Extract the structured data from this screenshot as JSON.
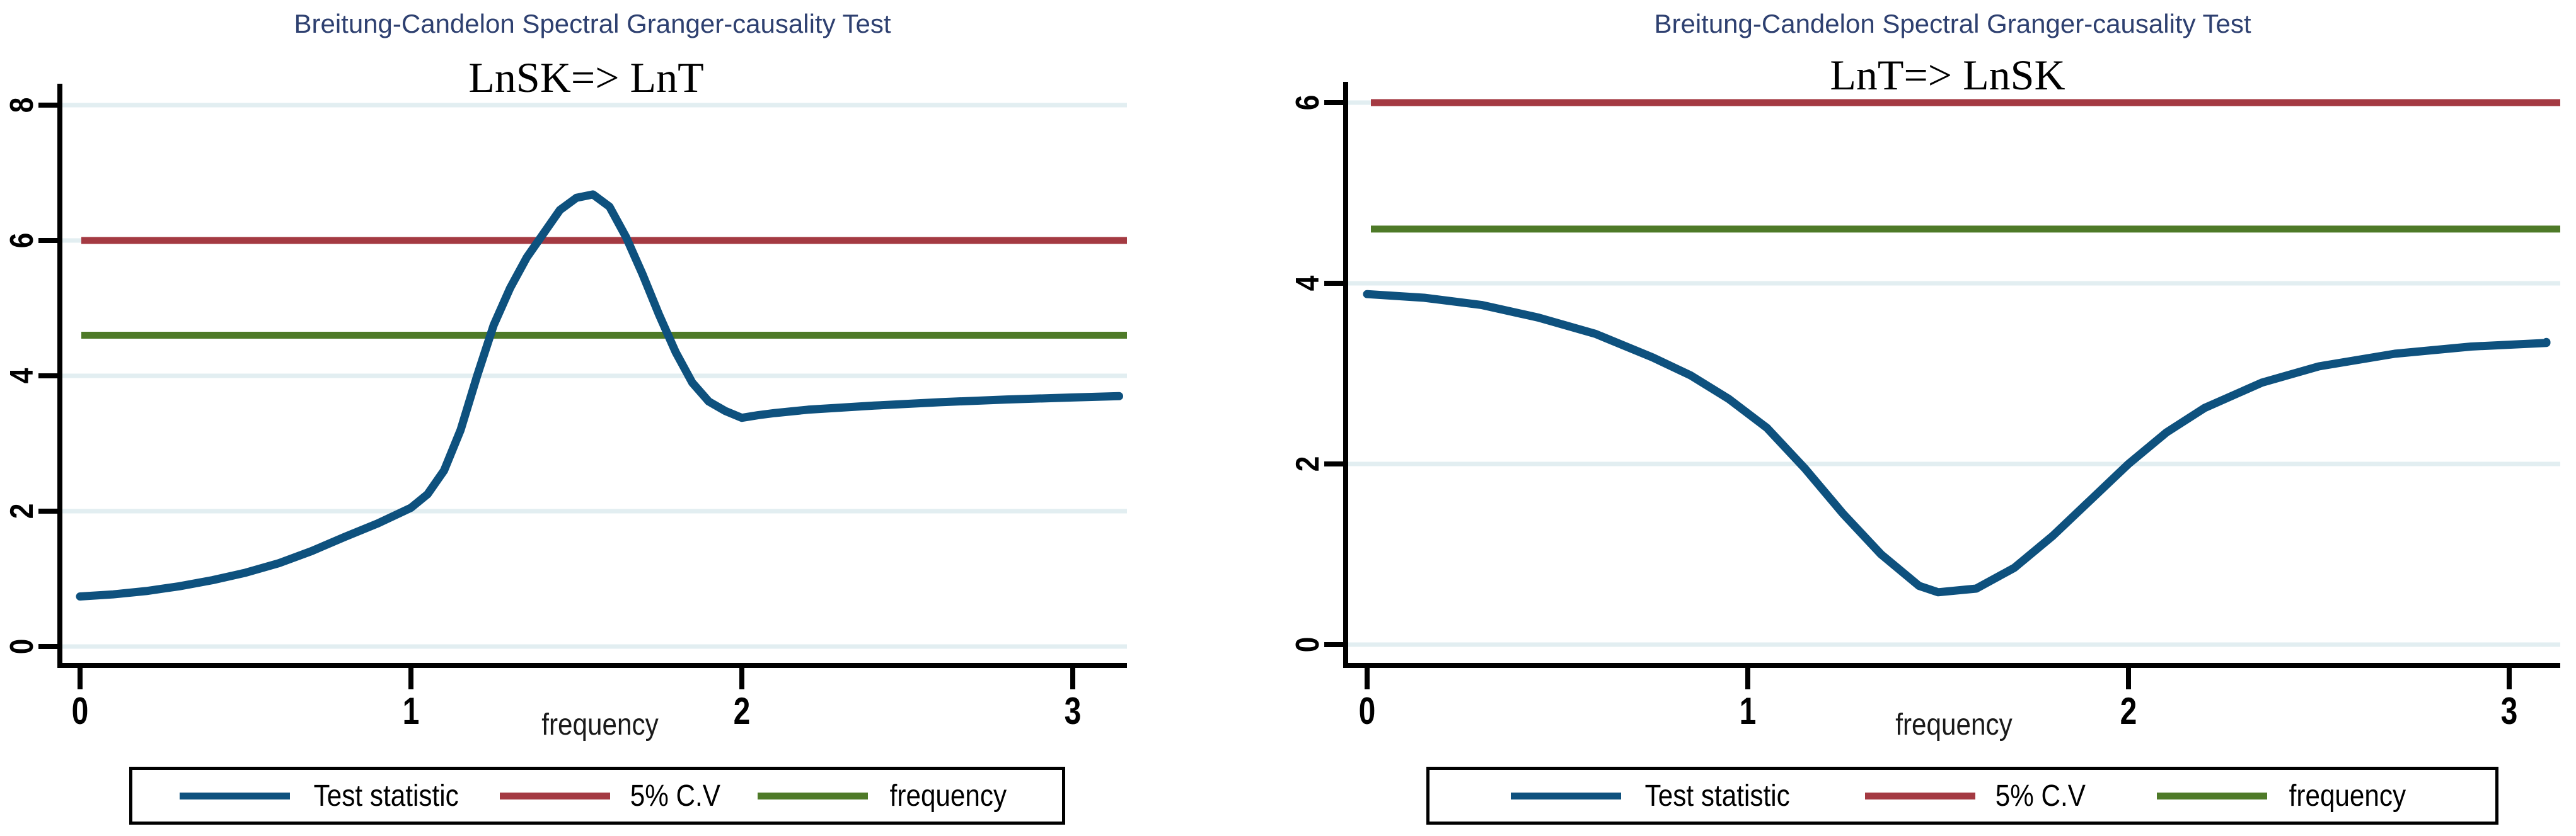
{
  "figure": {
    "background": "#ffffff",
    "title_color": "#2e4070",
    "grid_color": "#e2eef1",
    "axis_color": "#000000"
  },
  "chart_data": [
    {
      "type": "line",
      "title": "Breitung-Candelon Spectral Granger-causality Test",
      "subtitle": "LnSK=> LnT",
      "xlabel": "frequency",
      "ylabel": "",
      "xlim": [
        0,
        3.14
      ],
      "ylim": [
        0,
        8
      ],
      "xticks": [
        0,
        1,
        2,
        3
      ],
      "yticks": [
        0,
        2,
        4,
        6,
        8
      ],
      "grid": "horizontal-only",
      "legend_position": "bottom",
      "series": [
        {
          "name": "Test statistic",
          "kind": "curve",
          "color": "#0e517e",
          "points": [
            [
              0.0,
              0.74
            ],
            [
              0.1,
              0.77
            ],
            [
              0.2,
              0.82
            ],
            [
              0.3,
              0.89
            ],
            [
              0.4,
              0.98
            ],
            [
              0.5,
              1.09
            ],
            [
              0.6,
              1.23
            ],
            [
              0.7,
              1.41
            ],
            [
              0.8,
              1.62
            ],
            [
              0.9,
              1.82
            ],
            [
              1.0,
              2.05
            ],
            [
              1.05,
              2.25
            ],
            [
              1.1,
              2.6
            ],
            [
              1.15,
              3.2
            ],
            [
              1.2,
              4.0
            ],
            [
              1.25,
              4.75
            ],
            [
              1.3,
              5.3
            ],
            [
              1.35,
              5.75
            ],
            [
              1.4,
              6.1
            ],
            [
              1.45,
              6.45
            ],
            [
              1.5,
              6.63
            ],
            [
              1.55,
              6.68
            ],
            [
              1.6,
              6.5
            ],
            [
              1.65,
              6.05
            ],
            [
              1.7,
              5.5
            ],
            [
              1.75,
              4.9
            ],
            [
              1.8,
              4.35
            ],
            [
              1.85,
              3.9
            ],
            [
              1.9,
              3.62
            ],
            [
              1.95,
              3.48
            ],
            [
              2.0,
              3.38
            ],
            [
              2.05,
              3.42
            ],
            [
              2.1,
              3.45
            ],
            [
              2.2,
              3.5
            ],
            [
              2.4,
              3.56
            ],
            [
              2.6,
              3.61
            ],
            [
              2.8,
              3.65
            ],
            [
              3.0,
              3.68
            ],
            [
              3.14,
              3.7
            ]
          ]
        },
        {
          "name": "5% C.V",
          "kind": "hline",
          "color": "#a43a42",
          "value": 6.0
        },
        {
          "name": "frequency",
          "kind": "hline",
          "color": "#4e7a28",
          "value": 4.6
        }
      ]
    },
    {
      "type": "line",
      "title": "Breitung-Candelon Spectral Granger-causality Test",
      "subtitle": "LnT=> LnSK",
      "xlabel": "frequency",
      "ylabel": "",
      "xlim": [
        0,
        3.14
      ],
      "ylim": [
        0,
        6
      ],
      "xticks": [
        0,
        1,
        2,
        3
      ],
      "yticks": [
        0,
        2,
        4,
        6
      ],
      "grid": "horizontal-only",
      "legend_position": "bottom",
      "series": [
        {
          "name": "Test statistic",
          "kind": "curve",
          "color": "#0e517e",
          "points": [
            [
              0.0,
              3.88
            ],
            [
              0.15,
              3.84
            ],
            [
              0.3,
              3.76
            ],
            [
              0.45,
              3.62
            ],
            [
              0.6,
              3.44
            ],
            [
              0.75,
              3.18
            ],
            [
              0.85,
              2.98
            ],
            [
              0.95,
              2.72
            ],
            [
              1.05,
              2.4
            ],
            [
              1.15,
              1.95
            ],
            [
              1.25,
              1.45
            ],
            [
              1.35,
              1.0
            ],
            [
              1.45,
              0.65
            ],
            [
              1.5,
              0.58
            ],
            [
              1.6,
              0.62
            ],
            [
              1.7,
              0.85
            ],
            [
              1.8,
              1.2
            ],
            [
              1.9,
              1.6
            ],
            [
              2.0,
              2.0
            ],
            [
              2.1,
              2.35
            ],
            [
              2.2,
              2.62
            ],
            [
              2.35,
              2.9
            ],
            [
              2.5,
              3.08
            ],
            [
              2.7,
              3.22
            ],
            [
              2.9,
              3.3
            ],
            [
              3.1,
              3.34
            ],
            [
              3.14,
              3.35
            ]
          ]
        },
        {
          "name": "5% C.V",
          "kind": "hline",
          "color": "#a43a42",
          "value": 6.0
        },
        {
          "name": "frequency",
          "kind": "hline",
          "color": "#4e7a28",
          "value": 4.6
        }
      ]
    }
  ]
}
